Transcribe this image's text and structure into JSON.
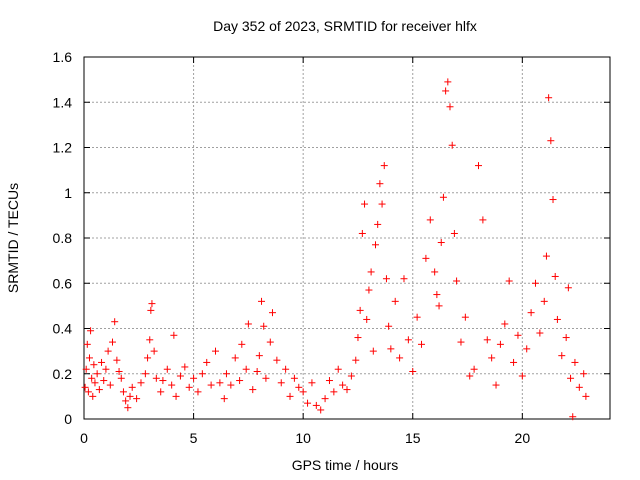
{
  "chart_data": {
    "type": "scatter",
    "title": "Day 352 of 2023, SRMTID for receiver hlfx",
    "xlabel": "GPS time / hours",
    "ylabel": "SRMTID / TECUs",
    "xlim": [
      0,
      24
    ],
    "ylim": [
      0,
      1.6
    ],
    "x_ticks": [
      0,
      5,
      10,
      15,
      20
    ],
    "x_tick_labels": [
      "0",
      "5",
      "10",
      "15",
      "20"
    ],
    "y_ticks": [
      0,
      0.2,
      0.4,
      0.6,
      0.8,
      1.0,
      1.2,
      1.4,
      1.6
    ],
    "y_tick_labels": [
      "0",
      "0.2",
      "0.4",
      "0.6",
      "0.8",
      "1",
      "1.2",
      "1.4",
      "1.6"
    ],
    "grid": true,
    "marker": "plus",
    "series": [
      {
        "name": "SRMTID",
        "color": "#ff0000",
        "points": [
          [
            0.05,
            0.14
          ],
          [
            0.1,
            0.22
          ],
          [
            0.15,
            0.33
          ],
          [
            0.2,
            0.12
          ],
          [
            0.25,
            0.27
          ],
          [
            0.3,
            0.39
          ],
          [
            0.35,
            0.18
          ],
          [
            0.4,
            0.1
          ],
          [
            0.45,
            0.24
          ],
          [
            0.5,
            0.16
          ],
          [
            0.6,
            0.2
          ],
          [
            0.7,
            0.13
          ],
          [
            0.8,
            0.25
          ],
          [
            0.9,
            0.17
          ],
          [
            1.0,
            0.22
          ],
          [
            1.1,
            0.3
          ],
          [
            1.2,
            0.15
          ],
          [
            1.3,
            0.34
          ],
          [
            1.4,
            0.43
          ],
          [
            1.5,
            0.26
          ],
          [
            1.6,
            0.21
          ],
          [
            1.7,
            0.18
          ],
          [
            1.8,
            0.12
          ],
          [
            1.9,
            0.08
          ],
          [
            2.0,
            0.05
          ],
          [
            2.1,
            0.1
          ],
          [
            2.2,
            0.14
          ],
          [
            2.4,
            0.09
          ],
          [
            2.6,
            0.16
          ],
          [
            2.8,
            0.2
          ],
          [
            2.9,
            0.27
          ],
          [
            3.0,
            0.35
          ],
          [
            3.05,
            0.48
          ],
          [
            3.1,
            0.51
          ],
          [
            3.2,
            0.3
          ],
          [
            3.3,
            0.18
          ],
          [
            3.5,
            0.12
          ],
          [
            3.6,
            0.17
          ],
          [
            3.8,
            0.22
          ],
          [
            4.0,
            0.15
          ],
          [
            4.1,
            0.37
          ],
          [
            4.2,
            0.1
          ],
          [
            4.4,
            0.19
          ],
          [
            4.6,
            0.23
          ],
          [
            4.8,
            0.14
          ],
          [
            5.0,
            0.18
          ],
          [
            5.2,
            0.12
          ],
          [
            5.4,
            0.2
          ],
          [
            5.6,
            0.25
          ],
          [
            5.8,
            0.15
          ],
          [
            6.0,
            0.3
          ],
          [
            6.2,
            0.16
          ],
          [
            6.4,
            0.09
          ],
          [
            6.5,
            0.2
          ],
          [
            6.7,
            0.15
          ],
          [
            6.9,
            0.27
          ],
          [
            7.1,
            0.17
          ],
          [
            7.2,
            0.33
          ],
          [
            7.4,
            0.22
          ],
          [
            7.5,
            0.42
          ],
          [
            7.7,
            0.13
          ],
          [
            7.9,
            0.21
          ],
          [
            8.0,
            0.28
          ],
          [
            8.1,
            0.52
          ],
          [
            8.2,
            0.41
          ],
          [
            8.3,
            0.18
          ],
          [
            8.5,
            0.34
          ],
          [
            8.6,
            0.47
          ],
          [
            8.8,
            0.26
          ],
          [
            9.0,
            0.16
          ],
          [
            9.2,
            0.22
          ],
          [
            9.4,
            0.1
          ],
          [
            9.6,
            0.18
          ],
          [
            9.8,
            0.14
          ],
          [
            10.0,
            0.12
          ],
          [
            10.2,
            0.07
          ],
          [
            10.4,
            0.16
          ],
          [
            10.6,
            0.06
          ],
          [
            10.8,
            0.04
          ],
          [
            11.0,
            0.09
          ],
          [
            11.2,
            0.17
          ],
          [
            11.4,
            0.12
          ],
          [
            11.6,
            0.22
          ],
          [
            11.8,
            0.15
          ],
          [
            12.0,
            0.13
          ],
          [
            12.2,
            0.19
          ],
          [
            12.4,
            0.26
          ],
          [
            12.5,
            0.36
          ],
          [
            12.6,
            0.48
          ],
          [
            12.7,
            0.82
          ],
          [
            12.8,
            0.95
          ],
          [
            12.9,
            0.44
          ],
          [
            13.0,
            0.57
          ],
          [
            13.1,
            0.65
          ],
          [
            13.2,
            0.3
          ],
          [
            13.3,
            0.77
          ],
          [
            13.4,
            0.86
          ],
          [
            13.5,
            1.04
          ],
          [
            13.6,
            0.95
          ],
          [
            13.7,
            1.12
          ],
          [
            13.8,
            0.62
          ],
          [
            13.9,
            0.41
          ],
          [
            14.0,
            0.31
          ],
          [
            14.2,
            0.52
          ],
          [
            14.4,
            0.27
          ],
          [
            14.6,
            0.62
          ],
          [
            14.8,
            0.35
          ],
          [
            15.0,
            0.21
          ],
          [
            15.2,
            0.45
          ],
          [
            15.4,
            0.33
          ],
          [
            15.6,
            0.71
          ],
          [
            15.8,
            0.88
          ],
          [
            16.0,
            0.65
          ],
          [
            16.1,
            0.55
          ],
          [
            16.2,
            0.5
          ],
          [
            16.3,
            0.78
          ],
          [
            16.4,
            0.98
          ],
          [
            16.5,
            1.45
          ],
          [
            16.6,
            1.49
          ],
          [
            16.7,
            1.38
          ],
          [
            16.8,
            1.21
          ],
          [
            16.9,
            0.82
          ],
          [
            17.0,
            0.61
          ],
          [
            17.2,
            0.34
          ],
          [
            17.4,
            0.45
          ],
          [
            17.6,
            0.19
          ],
          [
            17.8,
            0.22
          ],
          [
            18.0,
            1.12
          ],
          [
            18.2,
            0.88
          ],
          [
            18.4,
            0.35
          ],
          [
            18.6,
            0.27
          ],
          [
            18.8,
            0.15
          ],
          [
            19.0,
            0.33
          ],
          [
            19.2,
            0.42
          ],
          [
            19.4,
            0.61
          ],
          [
            19.6,
            0.25
          ],
          [
            19.8,
            0.37
          ],
          [
            20.0,
            0.19
          ],
          [
            20.2,
            0.31
          ],
          [
            20.4,
            0.47
          ],
          [
            20.6,
            0.6
          ],
          [
            20.8,
            0.38
          ],
          [
            21.0,
            0.52
          ],
          [
            21.1,
            0.72
          ],
          [
            21.2,
            1.42
          ],
          [
            21.3,
            1.23
          ],
          [
            21.4,
            0.97
          ],
          [
            21.5,
            0.63
          ],
          [
            21.6,
            0.44
          ],
          [
            21.8,
            0.28
          ],
          [
            22.0,
            0.36
          ],
          [
            22.1,
            0.58
          ],
          [
            22.2,
            0.18
          ],
          [
            22.3,
            0.01
          ],
          [
            22.4,
            0.25
          ],
          [
            22.6,
            0.14
          ],
          [
            22.8,
            0.2
          ],
          [
            22.9,
            0.1
          ]
        ]
      }
    ]
  }
}
